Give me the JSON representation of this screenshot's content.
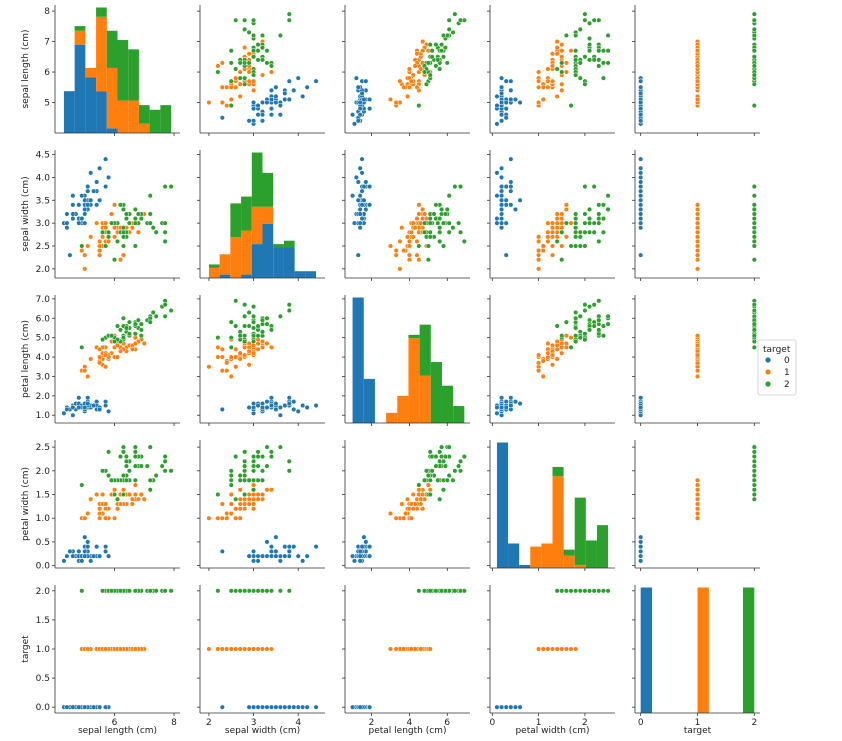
{
  "chart_data": {
    "type": "pairplot",
    "title": "",
    "variables": [
      "sepal length (cm)",
      "sepal width (cm)",
      "petal length (cm)",
      "petal width (cm)",
      "target"
    ],
    "ranges": {
      "sepal length (cm)": [
        4.0,
        8.2
      ],
      "sepal width (cm)": [
        1.8,
        4.6
      ],
      "petal length (cm)": [
        0.6,
        7.2
      ],
      "petal width (cm)": [
        -0.05,
        2.65
      ],
      "target": [
        -0.1,
        2.1
      ]
    },
    "ticks": {
      "sepal length (cm)": [
        5,
        6,
        7,
        8
      ],
      "sepal width (cm)": [
        2.0,
        2.5,
        3.0,
        3.5,
        4.0,
        4.5
      ],
      "petal length (cm)": [
        1,
        2,
        3,
        4,
        5,
        6,
        7
      ],
      "petal width (cm)": [
        0.0,
        0.5,
        1.0,
        1.5,
        2.0,
        2.5
      ],
      "target": [
        0.0,
        0.5,
        1.0,
        1.5,
        2.0
      ]
    },
    "xticks": {
      "sepal length (cm)": [
        6,
        8
      ],
      "sepal width (cm)": [
        2,
        3,
        4
      ],
      "petal length (cm)": [
        2,
        4,
        6
      ],
      "petal width (cm)": [
        0,
        1,
        2
      ],
      "target": [
        0,
        1,
        2
      ]
    },
    "legend": {
      "title": "target",
      "labels": [
        "0",
        "1",
        "2"
      ],
      "position": "center-right"
    },
    "colors": [
      "#1f77b4",
      "#ff7f0e",
      "#2ca02c"
    ],
    "series": [
      {
        "name": "0",
        "sepal_length": [
          5.1,
          4.9,
          4.7,
          4.6,
          5.0,
          5.4,
          4.6,
          5.0,
          4.4,
          4.9,
          5.4,
          4.8,
          4.8,
          4.3,
          5.8,
          5.7,
          5.4,
          5.1,
          5.7,
          5.1,
          5.4,
          5.1,
          4.6,
          5.1,
          4.8,
          5.0,
          5.0,
          5.2,
          5.2,
          4.7,
          4.8,
          5.4,
          5.2,
          5.5,
          4.9,
          5.0,
          5.5,
          4.9,
          4.4,
          5.1,
          5.0,
          4.5,
          4.4,
          5.0,
          5.1,
          4.8,
          5.1,
          4.6,
          5.3,
          5.0
        ],
        "sepal_width": [
          3.5,
          3.0,
          3.2,
          3.1,
          3.6,
          3.9,
          3.4,
          3.4,
          2.9,
          3.1,
          3.7,
          3.4,
          3.0,
          3.0,
          4.0,
          4.4,
          3.9,
          3.5,
          3.8,
          3.8,
          3.4,
          3.7,
          3.6,
          3.3,
          3.4,
          3.0,
          3.4,
          3.5,
          3.4,
          3.2,
          3.1,
          3.4,
          4.1,
          4.2,
          3.1,
          3.2,
          3.5,
          3.6,
          3.0,
          3.4,
          3.5,
          2.3,
          3.2,
          3.5,
          3.8,
          3.0,
          3.8,
          3.2,
          3.7,
          3.3
        ],
        "petal_length": [
          1.4,
          1.4,
          1.3,
          1.5,
          1.4,
          1.7,
          1.4,
          1.5,
          1.4,
          1.5,
          1.5,
          1.6,
          1.4,
          1.1,
          1.2,
          1.5,
          1.3,
          1.4,
          1.7,
          1.5,
          1.7,
          1.5,
          1.0,
          1.7,
          1.9,
          1.6,
          1.6,
          1.5,
          1.4,
          1.6,
          1.6,
          1.5,
          1.5,
          1.4,
          1.5,
          1.2,
          1.3,
          1.4,
          1.3,
          1.5,
          1.3,
          1.3,
          1.3,
          1.6,
          1.9,
          1.4,
          1.6,
          1.4,
          1.5,
          1.4
        ],
        "petal_width": [
          0.2,
          0.2,
          0.2,
          0.2,
          0.2,
          0.4,
          0.3,
          0.2,
          0.2,
          0.1,
          0.2,
          0.2,
          0.1,
          0.1,
          0.2,
          0.4,
          0.4,
          0.3,
          0.3,
          0.3,
          0.2,
          0.4,
          0.2,
          0.5,
          0.2,
          0.2,
          0.4,
          0.2,
          0.2,
          0.2,
          0.2,
          0.4,
          0.1,
          0.2,
          0.2,
          0.2,
          0.2,
          0.1,
          0.2,
          0.2,
          0.3,
          0.3,
          0.2,
          0.6,
          0.4,
          0.3,
          0.2,
          0.2,
          0.2,
          0.2
        ]
      },
      {
        "name": "1",
        "sepal_length": [
          7.0,
          6.4,
          6.9,
          5.5,
          6.5,
          5.7,
          6.3,
          4.9,
          6.6,
          5.2,
          5.0,
          5.9,
          6.0,
          6.1,
          5.6,
          6.7,
          5.6,
          5.8,
          6.2,
          5.6,
          5.9,
          6.1,
          6.3,
          6.1,
          6.4,
          6.6,
          6.8,
          6.7,
          6.0,
          5.7,
          5.5,
          5.5,
          5.8,
          6.0,
          5.4,
          6.0,
          6.7,
          6.3,
          5.6,
          5.5,
          5.5,
          6.1,
          5.8,
          5.0,
          5.6,
          5.7,
          5.7,
          6.2,
          5.1,
          5.7
        ],
        "sepal_width": [
          3.2,
          3.2,
          3.1,
          2.3,
          2.8,
          2.8,
          3.3,
          2.4,
          2.9,
          2.7,
          2.0,
          3.0,
          2.2,
          2.9,
          2.9,
          3.1,
          3.0,
          2.7,
          2.2,
          2.5,
          3.2,
          2.8,
          2.5,
          2.8,
          2.9,
          3.0,
          2.8,
          3.0,
          2.9,
          2.6,
          2.4,
          2.4,
          2.7,
          2.7,
          3.0,
          3.4,
          3.1,
          2.3,
          3.0,
          2.5,
          2.6,
          3.0,
          2.6,
          2.3,
          2.7,
          3.0,
          2.9,
          2.9,
          2.5,
          2.8
        ],
        "petal_length": [
          4.7,
          4.5,
          4.9,
          4.0,
          4.6,
          4.5,
          4.7,
          3.3,
          4.6,
          3.9,
          3.5,
          4.2,
          4.0,
          4.7,
          3.6,
          4.4,
          4.5,
          4.1,
          4.5,
          3.9,
          4.8,
          4.0,
          4.9,
          4.7,
          4.3,
          4.4,
          4.8,
          5.0,
          4.5,
          3.5,
          3.8,
          3.7,
          3.9,
          5.1,
          4.5,
          4.5,
          4.7,
          4.4,
          4.1,
          4.0,
          4.4,
          4.6,
          4.0,
          3.3,
          4.2,
          4.2,
          4.2,
          4.3,
          3.0,
          4.1
        ],
        "petal_width": [
          1.4,
          1.5,
          1.5,
          1.3,
          1.5,
          1.3,
          1.6,
          1.0,
          1.3,
          1.4,
          1.0,
          1.5,
          1.0,
          1.4,
          1.3,
          1.4,
          1.5,
          1.0,
          1.5,
          1.1,
          1.8,
          1.3,
          1.5,
          1.2,
          1.3,
          1.4,
          1.4,
          1.7,
          1.5,
          1.0,
          1.1,
          1.0,
          1.2,
          1.6,
          1.5,
          1.6,
          1.5,
          1.3,
          1.3,
          1.3,
          1.2,
          1.4,
          1.2,
          1.0,
          1.3,
          1.2,
          1.3,
          1.3,
          1.1,
          1.3
        ]
      },
      {
        "name": "2",
        "sepal_length": [
          6.3,
          5.8,
          7.1,
          6.3,
          6.5,
          7.6,
          4.9,
          7.3,
          6.7,
          7.2,
          6.5,
          6.4,
          6.8,
          5.7,
          5.8,
          6.4,
          6.5,
          7.7,
          7.7,
          6.0,
          6.9,
          5.6,
          7.7,
          6.3,
          6.7,
          7.2,
          6.2,
          6.1,
          6.4,
          7.2,
          7.4,
          7.9,
          6.4,
          6.3,
          6.1,
          7.7,
          6.3,
          6.4,
          6.0,
          6.9,
          6.7,
          6.9,
          5.8,
          6.8,
          6.7,
          6.7,
          6.3,
          6.5,
          6.2,
          5.9
        ],
        "sepal_width": [
          3.3,
          2.7,
          3.0,
          2.9,
          3.0,
          3.0,
          2.5,
          2.9,
          2.5,
          3.6,
          3.2,
          2.7,
          3.0,
          2.5,
          2.8,
          3.2,
          3.0,
          3.8,
          2.6,
          2.2,
          3.2,
          2.8,
          2.8,
          2.7,
          3.3,
          3.2,
          2.8,
          3.0,
          2.8,
          3.0,
          2.8,
          3.8,
          2.8,
          2.8,
          2.6,
          3.0,
          3.4,
          3.1,
          3.0,
          3.1,
          3.1,
          3.1,
          2.7,
          3.2,
          3.3,
          3.0,
          2.5,
          3.0,
          3.4,
          3.0
        ],
        "petal_length": [
          6.0,
          5.1,
          5.9,
          5.6,
          5.8,
          6.6,
          4.5,
          6.3,
          5.8,
          6.1,
          5.1,
          5.3,
          5.5,
          5.0,
          5.1,
          5.3,
          5.5,
          6.7,
          6.9,
          5.0,
          5.7,
          4.9,
          6.7,
          4.9,
          5.7,
          6.0,
          4.8,
          4.9,
          5.6,
          5.8,
          6.1,
          6.4,
          5.6,
          5.1,
          5.6,
          6.1,
          5.6,
          5.5,
          4.8,
          5.4,
          5.6,
          5.1,
          5.1,
          5.9,
          5.7,
          5.2,
          5.0,
          5.2,
          5.4,
          5.1
        ],
        "petal_width": [
          2.5,
          1.9,
          2.1,
          1.8,
          2.2,
          2.1,
          1.7,
          1.8,
          1.8,
          2.5,
          2.0,
          1.9,
          2.1,
          2.0,
          2.4,
          2.3,
          1.8,
          2.2,
          2.3,
          1.5,
          2.3,
          2.0,
          2.0,
          1.8,
          2.1,
          1.8,
          1.8,
          1.8,
          2.1,
          1.6,
          1.9,
          2.0,
          2.2,
          1.5,
          1.4,
          2.3,
          2.4,
          1.8,
          1.8,
          2.1,
          2.4,
          2.3,
          1.9,
          2.3,
          2.5,
          2.3,
          1.9,
          2.0,
          2.3,
          1.8
        ]
      }
    ]
  }
}
